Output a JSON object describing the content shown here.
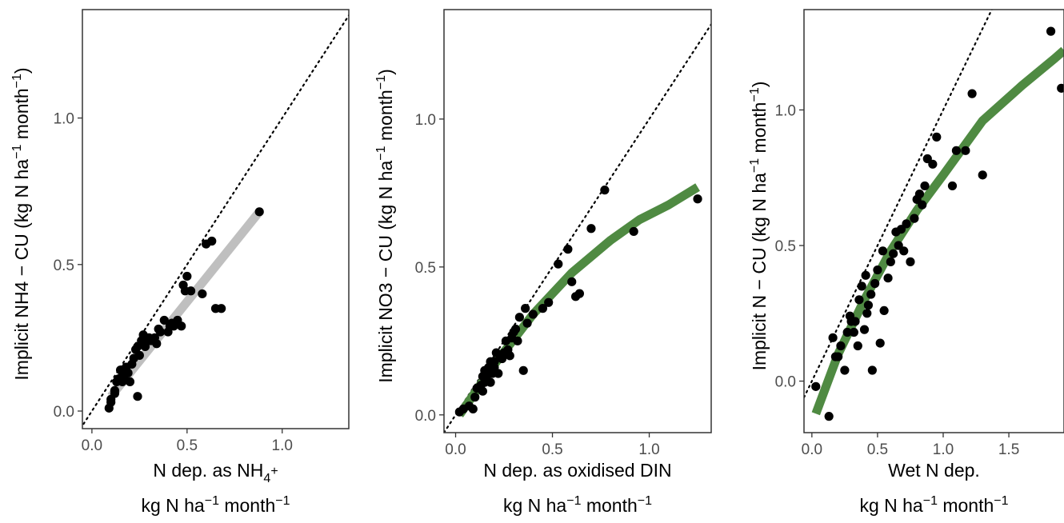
{
  "chart_data": [
    {
      "type": "scatter",
      "ylabel_main": "Implicit NH4 − CU",
      "ylabel_units": "(kg N ha⁻¹ month⁻¹)",
      "xlabel_main": "N dep. as NH₄⁺",
      "xlabel_units": "kg N ha⁻¹ month⁻¹",
      "xlim": [
        -0.05,
        1.35
      ],
      "ylim": [
        -0.06,
        1.37
      ],
      "x_ticks": [
        0.0,
        0.5,
        1.0
      ],
      "y_ticks": [
        0.0,
        0.5,
        1.0
      ],
      "x_tick_labels": [
        "0.0",
        "0.5",
        "1.0"
      ],
      "y_tick_labels": [
        "0.0",
        "0.5",
        "1.0"
      ],
      "identity_line": true,
      "fit_color": "#bfbfbf",
      "fit_line": {
        "x": [
          0.1,
          0.88
        ],
        "y": [
          0.05,
          0.68
        ]
      },
      "points": {
        "x": [
          0.1,
          0.09,
          0.1,
          0.12,
          0.12,
          0.13,
          0.14,
          0.15,
          0.16,
          0.16,
          0.17,
          0.18,
          0.18,
          0.19,
          0.2,
          0.21,
          0.22,
          0.23,
          0.24,
          0.24,
          0.25,
          0.26,
          0.27,
          0.28,
          0.28,
          0.3,
          0.31,
          0.33,
          0.34,
          0.35,
          0.36,
          0.38,
          0.4,
          0.41,
          0.42,
          0.43,
          0.45,
          0.47,
          0.48,
          0.49,
          0.5,
          0.52,
          0.58,
          0.6,
          0.63,
          0.65,
          0.68,
          0.88
        ],
        "y": [
          0.03,
          0.01,
          0.04,
          0.06,
          0.07,
          0.1,
          0.11,
          0.14,
          0.1,
          0.12,
          0.11,
          0.13,
          0.15,
          0.13,
          0.1,
          0.16,
          0.18,
          0.21,
          0.05,
          0.22,
          0.19,
          0.24,
          0.26,
          0.22,
          0.23,
          0.25,
          0.24,
          0.25,
          0.23,
          0.28,
          0.27,
          0.31,
          0.27,
          0.29,
          0.3,
          0.29,
          0.31,
          0.29,
          0.43,
          0.41,
          0.46,
          0.41,
          0.4,
          0.57,
          0.58,
          0.35,
          0.35,
          0.68
        ]
      }
    },
    {
      "type": "scatter",
      "ylabel_main": "Implicit NO3 − CU",
      "ylabel_units": "(kg N ha⁻¹ month⁻¹)",
      "xlabel_main": "N dep. as oxidised DIN",
      "xlabel_units": "kg N ha⁻¹ month⁻¹",
      "xlim": [
        -0.06,
        1.32
      ],
      "ylim": [
        -0.06,
        1.37
      ],
      "x_ticks": [
        0.0,
        0.5,
        1.0
      ],
      "y_ticks": [
        0.0,
        0.5,
        1.0
      ],
      "x_tick_labels": [
        "0.0",
        "0.5",
        "1.0"
      ],
      "y_tick_labels": [
        "0.0",
        "0.5",
        "1.0"
      ],
      "identity_line": true,
      "fit_color": "#4f8a42",
      "fit_line": {
        "x": [
          0.02,
          0.2,
          0.4,
          0.6,
          0.8,
          0.95,
          1.1,
          1.25
        ],
        "y": [
          0.0,
          0.17,
          0.34,
          0.48,
          0.59,
          0.66,
          0.71,
          0.77
        ]
      },
      "points": {
        "x": [
          0.02,
          0.04,
          0.07,
          0.09,
          0.1,
          0.11,
          0.12,
          0.13,
          0.14,
          0.14,
          0.15,
          0.15,
          0.16,
          0.16,
          0.17,
          0.17,
          0.18,
          0.18,
          0.19,
          0.2,
          0.2,
          0.21,
          0.22,
          0.23,
          0.24,
          0.25,
          0.26,
          0.27,
          0.28,
          0.29,
          0.3,
          0.31,
          0.32,
          0.33,
          0.35,
          0.36,
          0.37,
          0.4,
          0.45,
          0.48,
          0.53,
          0.58,
          0.6,
          0.62,
          0.64,
          0.7,
          0.77,
          0.92,
          1.25
        ],
        "y": [
          0.01,
          0.02,
          0.03,
          0.02,
          0.06,
          0.09,
          0.09,
          0.1,
          0.13,
          0.08,
          0.11,
          0.15,
          0.12,
          0.13,
          0.16,
          0.15,
          0.11,
          0.18,
          0.14,
          0.18,
          0.16,
          0.21,
          0.14,
          0.2,
          0.19,
          0.21,
          0.25,
          0.22,
          0.2,
          0.26,
          0.28,
          0.29,
          0.25,
          0.33,
          0.15,
          0.36,
          0.31,
          0.34,
          0.36,
          0.38,
          0.51,
          0.56,
          0.45,
          0.4,
          0.41,
          0.63,
          0.76,
          0.62,
          0.73
        ]
      }
    },
    {
      "type": "scatter",
      "ylabel_main": "Implicit N − CU",
      "ylabel_units": "(kg N ha⁻¹ month⁻¹)",
      "xlabel_main": "Wet N dep.",
      "xlabel_units": "kg N ha⁻¹ month⁻¹",
      "xlim": [
        -0.06,
        1.92
      ],
      "ylim": [
        -0.19,
        1.37
      ],
      "x_ticks": [
        0.0,
        0.5,
        1.0,
        1.5
      ],
      "y_ticks": [
        0.0,
        0.5,
        1.0
      ],
      "x_tick_labels": [
        "0.0",
        "0.5",
        "1.0",
        "1.5"
      ],
      "y_tick_labels": [
        "0.0",
        "0.5",
        "1.0"
      ],
      "identity_line": true,
      "fit_color": "#4f8a42",
      "fit_line": {
        "x": [
          0.03,
          0.2,
          0.4,
          0.6,
          0.8,
          1.0,
          1.3,
          1.6,
          1.85,
          1.92
        ],
        "y": [
          -0.12,
          0.1,
          0.3,
          0.48,
          0.63,
          0.76,
          0.96,
          1.09,
          1.19,
          1.22
        ]
      },
      "points": {
        "x": [
          0.03,
          0.13,
          0.16,
          0.18,
          0.2,
          0.22,
          0.25,
          0.27,
          0.29,
          0.3,
          0.32,
          0.33,
          0.35,
          0.36,
          0.38,
          0.4,
          0.41,
          0.42,
          0.43,
          0.45,
          0.46,
          0.48,
          0.5,
          0.52,
          0.54,
          0.55,
          0.58,
          0.6,
          0.62,
          0.64,
          0.66,
          0.68,
          0.7,
          0.72,
          0.75,
          0.78,
          0.8,
          0.82,
          0.84,
          0.86,
          0.88,
          0.92,
          0.95,
          1.07,
          1.1,
          1.17,
          1.22,
          1.3,
          1.82,
          1.9
        ],
        "y": [
          -0.02,
          -0.13,
          0.16,
          0.09,
          0.09,
          0.13,
          0.04,
          0.18,
          0.24,
          0.22,
          0.18,
          0.22,
          0.13,
          0.3,
          0.35,
          0.19,
          0.39,
          0.25,
          0.28,
          0.32,
          0.04,
          0.36,
          0.41,
          0.14,
          0.48,
          0.26,
          0.38,
          0.44,
          0.47,
          0.55,
          0.5,
          0.56,
          0.48,
          0.58,
          0.44,
          0.6,
          0.67,
          0.69,
          0.65,
          0.72,
          0.82,
          0.8,
          0.9,
          0.72,
          0.85,
          0.85,
          1.06,
          0.76,
          1.29,
          1.08
        ]
      }
    }
  ]
}
